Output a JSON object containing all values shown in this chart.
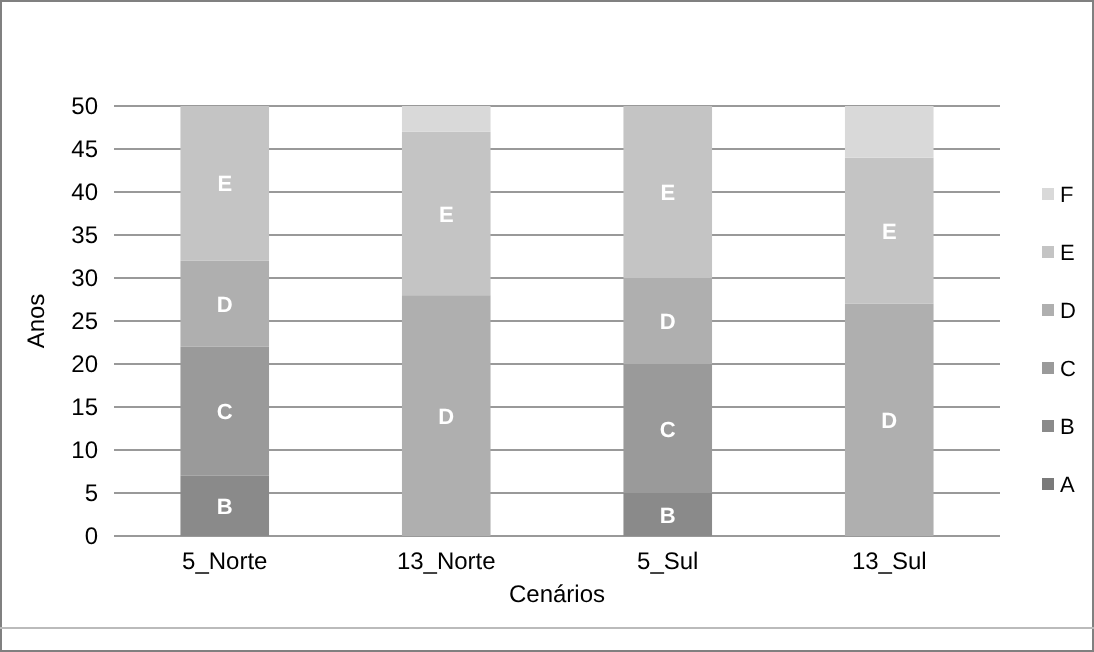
{
  "chart_data": {
    "type": "bar",
    "stacked": true,
    "xlabel": "Cenários",
    "ylabel": "Anos",
    "categories": [
      "5_Norte",
      "13_Norte",
      "5_Sul",
      "13_Sul"
    ],
    "series": [
      {
        "name": "A",
        "color": "#7a7a7a",
        "values": [
          null,
          null,
          null,
          null
        ]
      },
      {
        "name": "B",
        "color": "#8a8a8a",
        "values": [
          7,
          null,
          5,
          null
        ],
        "value_labels": [
          "B",
          null,
          "B",
          null
        ]
      },
      {
        "name": "C",
        "color": "#9a9a9a",
        "values": [
          15,
          null,
          15,
          null
        ],
        "value_labels": [
          "C",
          null,
          "C",
          null
        ]
      },
      {
        "name": "D",
        "color": "#afafaf",
        "values": [
          10,
          28,
          10,
          27
        ],
        "value_labels": [
          "D",
          "D",
          "D",
          "D"
        ]
      },
      {
        "name": "E",
        "color": "#c4c4c4",
        "values": [
          18,
          19,
          20,
          17
        ],
        "value_labels": [
          "E",
          "E",
          "E",
          "E"
        ]
      },
      {
        "name": "F",
        "color": "#d9d9d9",
        "values": [
          null,
          3,
          null,
          6
        ]
      }
    ],
    "ylim": [
      0,
      50
    ],
    "yticks": [
      0,
      5,
      10,
      15,
      20,
      25,
      30,
      35,
      40,
      45,
      50
    ],
    "grid": "y",
    "legend": "right"
  }
}
